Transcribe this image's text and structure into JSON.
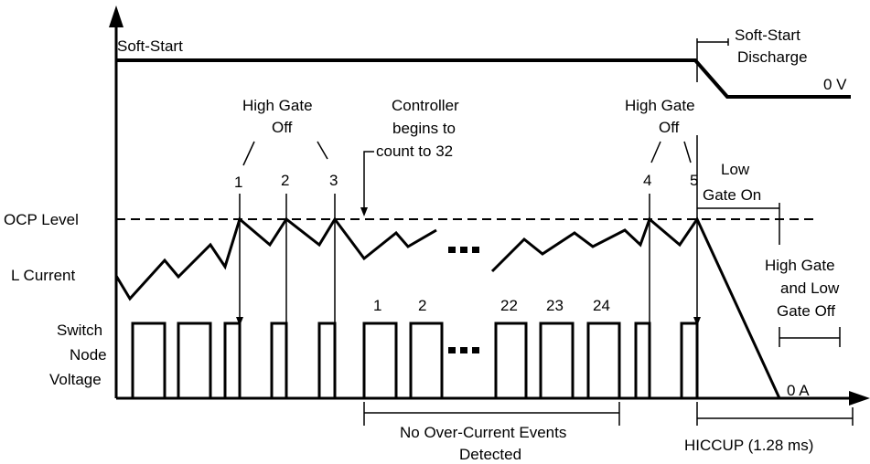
{
  "signals": {
    "soft_start": "Soft-Start",
    "ocp_level": "OCP Level",
    "l_current": "L Current",
    "switch_node_1": "Switch",
    "switch_node_2": "Node",
    "switch_node_3": "Voltage"
  },
  "annotations": {
    "soft_start_discharge_1": "Soft-Start",
    "soft_start_discharge_2": "Discharge",
    "zero_v": "0 V",
    "zero_a": "0 A",
    "high_gate_off_a_1": "High Gate",
    "high_gate_off_a_2": "Off",
    "high_gate_off_b_1": "High Gate",
    "high_gate_off_b_2": "Off",
    "controller_1": "Controller",
    "controller_2": "begins to",
    "controller_3": "count to 32",
    "low_gate_on_1": "Low",
    "low_gate_on_2": "Gate On",
    "hg_lg_off_1": "High Gate",
    "hg_lg_off_2": "and Low",
    "hg_lg_off_3": "Gate Off",
    "no_oc_1": "No Over-Current Events",
    "no_oc_2": "Detected",
    "hiccup": "HICCUP (1.28 ms)"
  },
  "event_numbers": [
    "1",
    "2",
    "3",
    "4",
    "5"
  ],
  "pulse_counts": [
    "1",
    "2",
    "22",
    "23",
    "24"
  ],
  "ellipsis": "• • •"
}
